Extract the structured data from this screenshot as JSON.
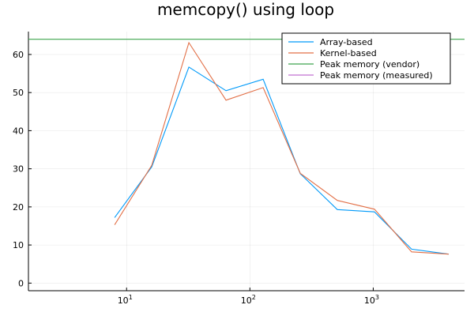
{
  "chart_data": {
    "type": "line",
    "title": "memcopy() using loop",
    "xlabel": "",
    "ylabel": "",
    "xscale": "log10",
    "xlim": [
      1.6,
      5500
    ],
    "ylim": [
      -2,
      66
    ],
    "grid": true,
    "legend_position": "top-right",
    "y_ticks": [
      0,
      10,
      20,
      30,
      40,
      50,
      60
    ],
    "y_tick_labels": [
      "0",
      "10",
      "20",
      "30",
      "40",
      "50",
      "60"
    ],
    "x_ticks": [
      10,
      100,
      1000
    ],
    "x_tick_labels": [
      {
        "base": "10",
        "exp": "1"
      },
      {
        "base": "10",
        "exp": "2"
      },
      {
        "base": "10",
        "exp": "3"
      }
    ],
    "x": [
      8,
      16,
      32,
      64,
      128,
      256,
      512,
      1024,
      2048,
      4096
    ],
    "series": [
      {
        "name": "Array-based",
        "color": "#009af9",
        "values": [
          17.2,
          30.5,
          56.7,
          50.5,
          53.5,
          28.7,
          19.3,
          18.7,
          8.9,
          7.6
        ]
      },
      {
        "name": "Kernel-based",
        "color": "#e26f46",
        "values": [
          15.3,
          30.9,
          63.1,
          48.0,
          51.3,
          28.8,
          21.7,
          19.4,
          8.2,
          7.6
        ]
      },
      {
        "name": "Peak memory (vendor)",
        "color": "#3da44d",
        "hline": 64.0
      },
      {
        "name": "Peak memory (measured)",
        "color": "#c271d2"
      }
    ]
  }
}
